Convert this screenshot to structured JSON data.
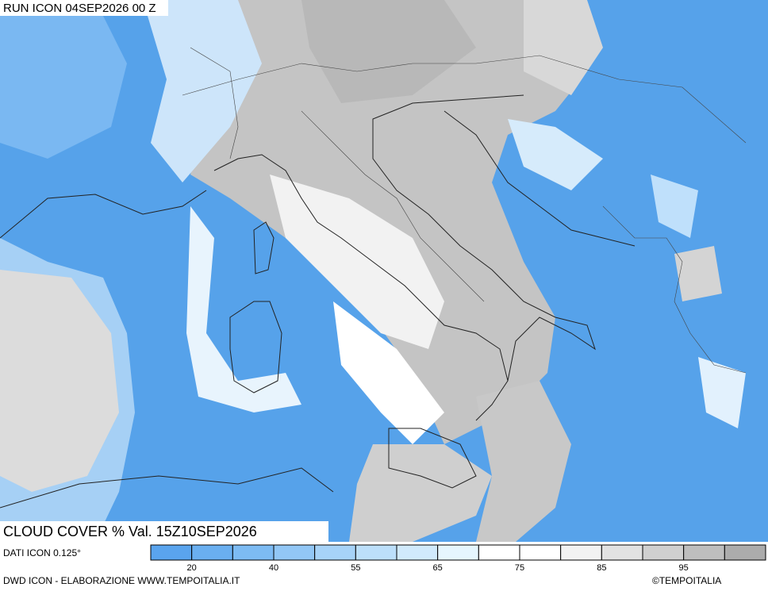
{
  "header": {
    "run": "RUN ICON 04SEP2026 00 Z"
  },
  "caption": "CLOUD COVER % Val. 15Z10SEP2026",
  "legend": {
    "source": "DATI ICON 0.125°",
    "colors": [
      "#5aa4ee",
      "#6aaff0",
      "#7dbbf3",
      "#92c7f6",
      "#a7d3f8",
      "#bcdffa",
      "#d1eafc",
      "#e6f6fe",
      "#ffffff",
      "#ffffff",
      "#f2f2f2",
      "#e2e2e2",
      "#d0d0d0",
      "#bebebe",
      "#acacac"
    ],
    "labels": [
      "20",
      "40",
      "55",
      "65",
      "75",
      "85",
      "95"
    ]
  },
  "footer": {
    "left": "DWD ICON - ELABORAZIONE WWW.TEMPOITALIA.IT",
    "right": "©TEMPOITALIA"
  }
}
